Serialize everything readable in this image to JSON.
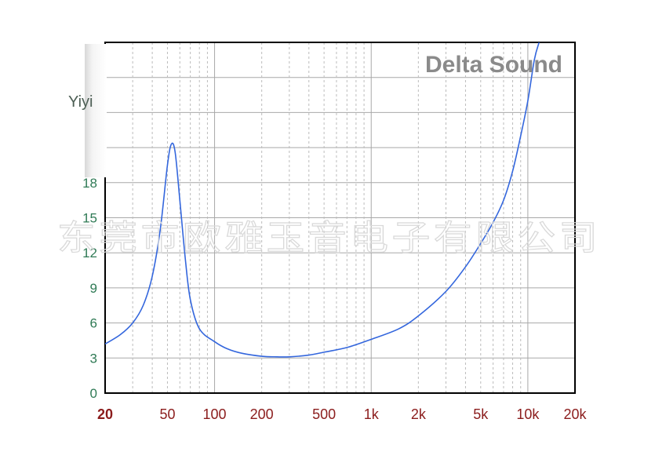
{
  "chart_data": {
    "type": "line",
    "title": "",
    "xlabel": "",
    "ylabel": "",
    "x_scale": "log",
    "xlim": [
      20,
      20000
    ],
    "ylim": [
      0,
      30
    ],
    "grid": true,
    "yticks": [
      {
        "value": 0,
        "label": "0"
      },
      {
        "value": 3,
        "label": "3"
      },
      {
        "value": 6,
        "label": "6"
      },
      {
        "value": 9,
        "label": "9"
      },
      {
        "value": 12,
        "label": "12"
      },
      {
        "value": 15,
        "label": "15"
      },
      {
        "value": 18,
        "label": "18"
      }
    ],
    "xticks": [
      {
        "value": 20,
        "label": "20"
      },
      {
        "value": 50,
        "label": "50"
      },
      {
        "value": 100,
        "label": "100"
      },
      {
        "value": 200,
        "label": "200"
      },
      {
        "value": 500,
        "label": "500"
      },
      {
        "value": 1000,
        "label": "1k"
      },
      {
        "value": 2000,
        "label": "2k"
      },
      {
        "value": 5000,
        "label": "5k"
      },
      {
        "value": 10000,
        "label": "10k"
      },
      {
        "value": 20000,
        "label": "20k"
      }
    ],
    "series": [
      {
        "color": "#3366dd",
        "points": [
          [
            20,
            4.2
          ],
          [
            25,
            5.0
          ],
          [
            30,
            6.0
          ],
          [
            35,
            7.5
          ],
          [
            40,
            10.0
          ],
          [
            45,
            14.0
          ],
          [
            50,
            19.5
          ],
          [
            53,
            21.3
          ],
          [
            56,
            20.6
          ],
          [
            60,
            16.5
          ],
          [
            65,
            11.5
          ],
          [
            70,
            8.0
          ],
          [
            80,
            5.5
          ],
          [
            100,
            4.4
          ],
          [
            120,
            3.8
          ],
          [
            150,
            3.4
          ],
          [
            200,
            3.15
          ],
          [
            250,
            3.1
          ],
          [
            300,
            3.1
          ],
          [
            400,
            3.25
          ],
          [
            500,
            3.5
          ],
          [
            700,
            3.9
          ],
          [
            1000,
            4.6
          ],
          [
            1500,
            5.5
          ],
          [
            2000,
            6.6
          ],
          [
            3000,
            8.7
          ],
          [
            4000,
            10.8
          ],
          [
            5000,
            12.8
          ],
          [
            6000,
            14.6
          ],
          [
            7000,
            16.5
          ],
          [
            8000,
            19.0
          ],
          [
            9000,
            22.0
          ],
          [
            10000,
            25.0
          ],
          [
            11000,
            28.5
          ],
          [
            11800,
            30.0
          ]
        ]
      }
    ]
  },
  "branding": {
    "title": "Delta Sound",
    "watermark": "东莞市欧雅玉音电子有限公司",
    "corner_label": "Yiyi"
  }
}
